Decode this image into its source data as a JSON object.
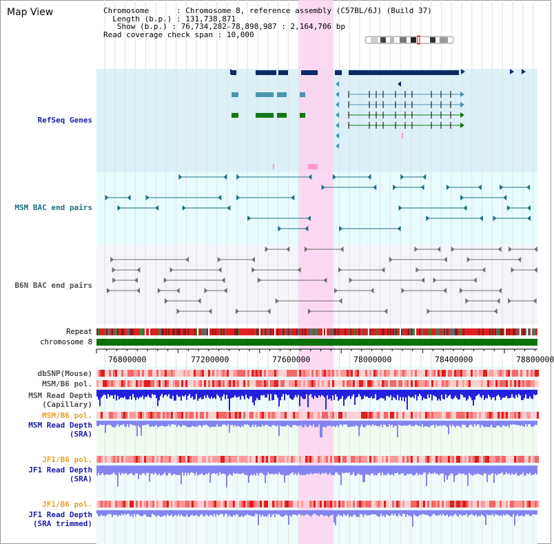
{
  "view_title": "Map View",
  "info": {
    "chromosome_label": "Chromosome",
    "chromosome_value": "Chromosome 8, reference assembly (C57BL/6J) (Build 37)",
    "length_label": "Length (b.p.)",
    "length_value": "131,738,871",
    "show_label": "Show (b.p.)",
    "show_value": "76,734,282-78,898,987 : 2,164,706 bp",
    "coverage_label": "Read coverage check span",
    "coverage_value": "10,000"
  },
  "tracks": {
    "refseq": "RefSeq Genes",
    "msm_bac": "MSM BAC end pairs",
    "b6n_bac": "B6N BAC end pairs",
    "repeat": "Repeat",
    "chromosome": "chromosome 8",
    "dbsnp": "dbSNP(Mouse)",
    "msm_b6_pol_1": "MSM/B6 pol.",
    "msm_depth_cap_1": "MSM Read Depth",
    "msm_depth_cap_2": "(Capillary)",
    "msm_b6_pol_2": "MSM/B6 pol.",
    "msm_depth_sra_1": "MSM Read Depth",
    "msm_depth_sra_2": "(SRA)",
    "jf1_b6_pol_1": "JF1/B6 pol.",
    "jf1_depth_sra_1": "JF1 Read Depth",
    "jf1_depth_sra_2": "(SRA)",
    "jf1_b6_pol_2": "JF1/B6 pol.",
    "jf1_depth_trim_1": "JF1 Read Depth",
    "jf1_depth_trim_2": "(SRA trimmed)"
  },
  "axis_ticks": [
    "76800000",
    "77200000",
    "77600000",
    "78000000",
    "78400000",
    "78800000"
  ],
  "colors": {
    "refseq_bg": "#dcf0f8",
    "msm_bac_bg": "#e6fbfb",
    "highlight": "#fbd4f0",
    "gene_dark": "#0d2a66",
    "gene_teal": "#4a95b0",
    "gene_green": "#157615",
    "bac_teal": "#1b6f82",
    "bac_gray": "#707070",
    "chromosome_bar": "#0a700a",
    "depth_capillary": "#2222dd",
    "depth_sra": "#8484f0"
  }
}
